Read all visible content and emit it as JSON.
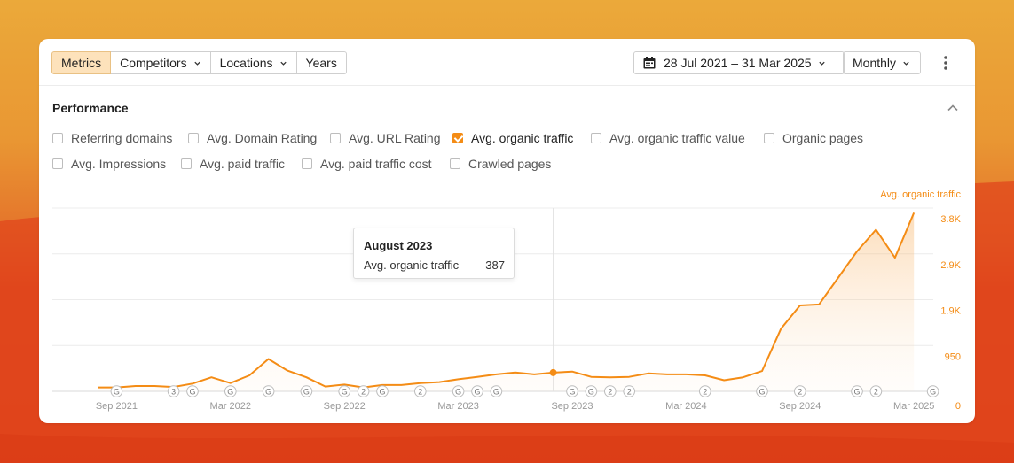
{
  "toolbar": {
    "tabs": [
      {
        "label": "Metrics",
        "active": true,
        "dropdown": false
      },
      {
        "label": "Competitors",
        "active": false,
        "dropdown": true
      },
      {
        "label": "Locations",
        "active": false,
        "dropdown": true
      },
      {
        "label": "Years",
        "active": false,
        "dropdown": false
      }
    ],
    "date_range": "28 Jul 2021 – 31 Mar 2025",
    "granularity": "Monthly",
    "more_icon": "vertical-dots-icon"
  },
  "performance": {
    "title": "Performance",
    "collapse_icon": "chevron-up-icon",
    "metrics_row1": [
      {
        "label": "Referring domains",
        "checked": false
      },
      {
        "label": "Avg. Domain Rating",
        "checked": false
      },
      {
        "label": "Avg. URL Rating",
        "checked": false
      },
      {
        "label": "Avg. organic traffic",
        "checked": true
      },
      {
        "label": "Avg. organic traffic value",
        "checked": false
      },
      {
        "label": "Organic pages",
        "checked": false
      }
    ],
    "metrics_row2": [
      {
        "label": "Avg. Impressions",
        "checked": false
      },
      {
        "label": "Avg. paid traffic",
        "checked": false
      },
      {
        "label": "Avg. paid traffic cost",
        "checked": false
      },
      {
        "label": "Crawled pages",
        "checked": false
      }
    ]
  },
  "chart_data": {
    "type": "area",
    "series_name": "Avg. organic traffic",
    "color": "#f48c15",
    "ylim": [
      0,
      3800
    ],
    "y_ticks": [
      {
        "label": "0",
        "value": 0
      },
      {
        "label": "950",
        "value": 950
      },
      {
        "label": "1.9K",
        "value": 1900
      },
      {
        "label": "2.9K",
        "value": 2850
      },
      {
        "label": "3.8K",
        "value": 3800
      }
    ],
    "x_ticks": [
      {
        "label": "Sep 2021",
        "index": 1
      },
      {
        "label": "Mar 2022",
        "index": 7
      },
      {
        "label": "Sep 2022",
        "index": 13
      },
      {
        "label": "Mar 2023",
        "index": 19
      },
      {
        "label": "Sep 2023",
        "index": 25
      },
      {
        "label": "Mar 2024",
        "index": 31
      },
      {
        "label": "Sep 2024",
        "index": 37
      },
      {
        "label": "Mar 2025",
        "index": 43
      }
    ],
    "x": [
      "Aug 2021",
      "Sep 2021",
      "Oct 2021",
      "Nov 2021",
      "Dec 2021",
      "Jan 2022",
      "Feb 2022",
      "Mar 2022",
      "Apr 2022",
      "May 2022",
      "Jun 2022",
      "Jul 2022",
      "Aug 2022",
      "Sep 2022",
      "Oct 2022",
      "Nov 2022",
      "Dec 2022",
      "Jan 2023",
      "Feb 2023",
      "Mar 2023",
      "Apr 2023",
      "May 2023",
      "Jun 2023",
      "Jul 2023",
      "Aug 2023",
      "Sep 2023",
      "Oct 2023",
      "Nov 2023",
      "Dec 2023",
      "Jan 2024",
      "Feb 2024",
      "Mar 2024",
      "Apr 2024",
      "May 2024",
      "Jun 2024",
      "Jul 2024",
      "Aug 2024",
      "Sep 2024",
      "Oct 2024",
      "Nov 2024",
      "Dec 2024",
      "Jan 2025",
      "Feb 2025",
      "Mar 2025"
    ],
    "values": [
      80,
      80,
      110,
      110,
      90,
      160,
      290,
      170,
      330,
      670,
      430,
      290,
      100,
      140,
      80,
      130,
      130,
      170,
      190,
      250,
      300,
      350,
      390,
      350,
      387,
      410,
      300,
      290,
      300,
      370,
      350,
      350,
      330,
      230,
      290,
      420,
      1300,
      1780,
      1800,
      2350,
      2900,
      3350,
      2770,
      3700
    ],
    "highlight_index": 24,
    "annotations": [
      {
        "index": 1,
        "label": "G"
      },
      {
        "index": 4,
        "label": "3"
      },
      {
        "index": 5,
        "label": "G"
      },
      {
        "index": 7,
        "label": "G"
      },
      {
        "index": 9,
        "label": "G"
      },
      {
        "index": 11,
        "label": "G"
      },
      {
        "index": 13,
        "label": "G"
      },
      {
        "index": 14,
        "label": "2"
      },
      {
        "index": 15,
        "label": "G"
      },
      {
        "index": 17,
        "label": "2"
      },
      {
        "index": 19,
        "label": "G"
      },
      {
        "index": 20,
        "label": "G"
      },
      {
        "index": 21,
        "label": "G"
      },
      {
        "index": 25,
        "label": "G"
      },
      {
        "index": 26,
        "label": "G"
      },
      {
        "index": 27,
        "label": "2"
      },
      {
        "index": 28,
        "label": "2"
      },
      {
        "index": 32,
        "label": "2"
      },
      {
        "index": 35,
        "label": "G"
      },
      {
        "index": 37,
        "label": "2"
      },
      {
        "index": 40,
        "label": "G"
      },
      {
        "index": 41,
        "label": "2"
      },
      {
        "index": 44,
        "label": "G"
      }
    ]
  },
  "tooltip": {
    "title": "August 2023",
    "label": "Avg. organic traffic",
    "value": "387"
  }
}
